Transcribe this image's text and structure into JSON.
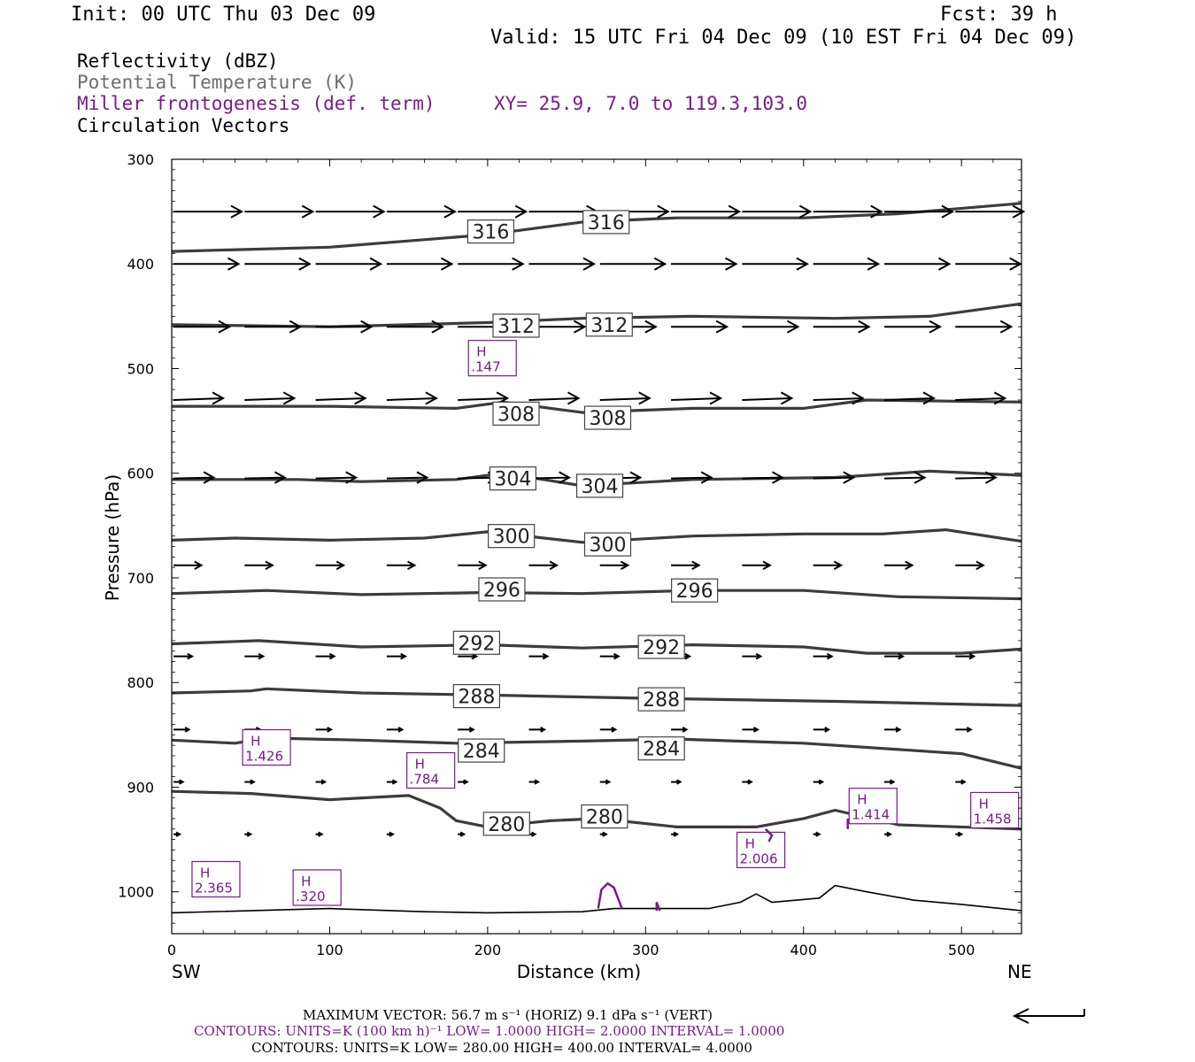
{
  "header": {
    "init": "Init: 00 UTC Thu 03 Dec 09",
    "fcst": "Fcst:   39 h",
    "valid": "Valid: 15 UTC Fri 04 Dec 09 (10 EST Fri 04 Dec 09)"
  },
  "legend": {
    "reflectivity": "Reflectivity (dBZ)",
    "theta": "Potential Temperature (K)",
    "frontogenesis": "Miller frontogenesis (def. term)",
    "xy": "XY=  25.9,  7.0 to 119.3,103.0",
    "vectors": "Circulation Vectors"
  },
  "footer": {
    "max_vector": "MAXIMUM VECTOR:  56.7 m s⁻¹ (HORIZ)          9.1 dPa s⁻¹ (VERT)",
    "contours_purple": "CONTOURS:  UNITS=K (100 km h)⁻¹  LOW=   1.0000       HIGH=   2.0000       INTERVAL=    1.0000",
    "contours_black": "CONTOURS:  UNITS=K  LOW=   280.00       HIGH=   400.00       INTERVAL=    4.0000"
  },
  "colors": {
    "theta": "#3c3c3c",
    "frontogenesis": "#7a1a8a",
    "vectors": "#000000"
  },
  "chart_data": {
    "type": "line",
    "xlabel": "Distance (km)",
    "ylabel": "Pressure (hPa)",
    "xlim": [
      0,
      538
    ],
    "ylim": [
      1040,
      300
    ],
    "y_scale": "linear, inverted (pressure)",
    "xticks": [
      0,
      100,
      200,
      300,
      400,
      500
    ],
    "yticks": [
      300,
      400,
      500,
      600,
      700,
      800,
      900,
      1000
    ],
    "x_end_labels": {
      "left": "SW",
      "right": "NE"
    },
    "grid": false,
    "theta_contours": [
      {
        "level": 316,
        "label": "316",
        "points": [
          [
            0,
            388
          ],
          [
            100,
            384
          ],
          [
            200,
            372
          ],
          [
            260,
            360
          ],
          [
            320,
            356
          ],
          [
            400,
            356
          ],
          [
            460,
            352
          ],
          [
            538,
            342
          ]
        ],
        "label_at": [
          [
            202,
            369
          ],
          [
            275,
            360
          ]
        ]
      },
      {
        "level": 312,
        "label": "312",
        "points": [
          [
            0,
            458
          ],
          [
            100,
            460
          ],
          [
            200,
            456
          ],
          [
            260,
            452
          ],
          [
            330,
            450
          ],
          [
            420,
            452
          ],
          [
            480,
            450
          ],
          [
            538,
            438
          ]
        ],
        "label_at": [
          [
            218,
            459
          ],
          [
            277,
            458
          ]
        ]
      },
      {
        "level": 308,
        "label": "308",
        "points": [
          [
            0,
            536
          ],
          [
            100,
            536
          ],
          [
            180,
            538
          ],
          [
            210,
            532
          ],
          [
            260,
            542
          ],
          [
            330,
            538
          ],
          [
            400,
            538
          ],
          [
            440,
            530
          ],
          [
            538,
            532
          ]
        ],
        "label_at": [
          [
            218,
            543
          ],
          [
            276,
            547
          ]
        ]
      },
      {
        "level": 304,
        "label": "304",
        "points": [
          [
            0,
            606
          ],
          [
            80,
            606
          ],
          [
            120,
            608
          ],
          [
            180,
            606
          ],
          [
            210,
            600
          ],
          [
            260,
            612
          ],
          [
            330,
            606
          ],
          [
            420,
            604
          ],
          [
            480,
            598
          ],
          [
            538,
            602
          ]
        ],
        "label_at": [
          [
            216,
            605
          ],
          [
            271,
            612
          ]
        ]
      },
      {
        "level": 300,
        "label": "300",
        "points": [
          [
            0,
            664
          ],
          [
            40,
            662
          ],
          [
            100,
            664
          ],
          [
            160,
            662
          ],
          [
            200,
            656
          ],
          [
            260,
            666
          ],
          [
            330,
            660
          ],
          [
            400,
            658
          ],
          [
            450,
            658
          ],
          [
            490,
            654
          ],
          [
            538,
            665
          ]
        ],
        "label_at": [
          [
            215,
            660
          ],
          [
            276,
            668
          ]
        ]
      },
      {
        "level": 296,
        "label": "296",
        "points": [
          [
            0,
            715
          ],
          [
            60,
            712
          ],
          [
            120,
            716
          ],
          [
            200,
            714
          ],
          [
            260,
            715
          ],
          [
            330,
            712
          ],
          [
            400,
            712
          ],
          [
            460,
            718
          ],
          [
            538,
            720
          ]
        ],
        "label_at": [
          [
            209,
            711
          ],
          [
            331,
            712
          ]
        ]
      },
      {
        "level": 292,
        "label": "292",
        "points": [
          [
            0,
            763
          ],
          [
            55,
            760
          ],
          [
            120,
            766
          ],
          [
            200,
            764
          ],
          [
            260,
            767
          ],
          [
            330,
            764
          ],
          [
            400,
            766
          ],
          [
            440,
            772
          ],
          [
            500,
            772
          ],
          [
            538,
            768
          ]
        ],
        "label_at": [
          [
            193,
            762
          ],
          [
            310,
            766
          ]
        ]
      },
      {
        "level": 288,
        "label": "288",
        "points": [
          [
            0,
            810
          ],
          [
            50,
            808
          ],
          [
            60,
            806
          ],
          [
            120,
            810
          ],
          [
            200,
            812
          ],
          [
            300,
            815
          ],
          [
            420,
            818
          ],
          [
            538,
            822
          ]
        ],
        "label_at": [
          [
            193,
            813
          ],
          [
            310,
            816
          ]
        ]
      },
      {
        "level": 284,
        "label": "284",
        "points": [
          [
            0,
            855
          ],
          [
            40,
            858
          ],
          [
            60,
            853
          ],
          [
            120,
            855
          ],
          [
            180,
            858
          ],
          [
            260,
            856
          ],
          [
            320,
            854
          ],
          [
            400,
            858
          ],
          [
            500,
            868
          ],
          [
            538,
            882
          ]
        ],
        "label_at": [
          [
            196,
            865
          ],
          [
            310,
            863
          ]
        ]
      },
      {
        "level": 280,
        "label": "280",
        "points": [
          [
            0,
            904
          ],
          [
            50,
            906
          ],
          [
            100,
            912
          ],
          [
            150,
            908
          ],
          [
            170,
            920
          ],
          [
            180,
            932
          ],
          [
            200,
            938
          ],
          [
            240,
            932
          ],
          [
            270,
            930
          ],
          [
            320,
            938
          ],
          [
            370,
            938
          ],
          [
            400,
            930
          ],
          [
            420,
            922
          ],
          [
            460,
            936
          ],
          [
            538,
            940
          ]
        ],
        "label_at": [
          [
            212,
            935
          ],
          [
            274,
            928
          ]
        ]
      }
    ],
    "terrain": [
      [
        0,
        1020
      ],
      [
        100,
        1016
      ],
      [
        160,
        1019
      ],
      [
        200,
        1020
      ],
      [
        260,
        1019
      ],
      [
        280,
        1016
      ],
      [
        340,
        1016
      ],
      [
        360,
        1010
      ],
      [
        370,
        1002
      ],
      [
        380,
        1010
      ],
      [
        410,
        1006
      ],
      [
        420,
        994
      ],
      [
        440,
        1000
      ],
      [
        470,
        1008
      ],
      [
        500,
        1012
      ],
      [
        538,
        1018
      ]
    ],
    "frontogenesis_maxima": [
      {
        "label": "H",
        "value": "1.426",
        "x": 60,
        "p": 862
      },
      {
        "label": "H",
        "value": ".784",
        "x": 164,
        "p": 884
      },
      {
        "label": "H",
        "value": ".147",
        "x": 203,
        "p": 490
      },
      {
        "label": "H",
        "value": "2.365",
        "x": 28,
        "p": 988
      },
      {
        "label": "H",
        "value": ".320",
        "x": 92,
        "p": 996
      },
      {
        "label": "H",
        "value": "2.006",
        "x": 373,
        "p": 960
      },
      {
        "label": "H",
        "value": "1.414",
        "x": 444,
        "p": 918
      },
      {
        "label": "H",
        "value": "1.458",
        "x": 521,
        "p": 922
      }
    ],
    "vector_rows": [
      {
        "p": 350,
        "x": [
          0,
          45,
          90,
          135,
          180,
          225,
          270,
          315,
          360,
          405,
          450,
          495
        ],
        "u": 44,
        "w": 0
      },
      {
        "p": 400,
        "x": [
          0,
          45,
          90,
          135,
          180,
          225,
          270,
          315,
          360,
          405,
          450,
          495
        ],
        "u": 42,
        "w": 0
      },
      {
        "p": 460,
        "x": [
          0,
          45,
          90,
          135,
          180,
          225,
          270,
          315,
          360,
          405,
          450,
          495
        ],
        "u": 36,
        "w": 0
      },
      {
        "p": 530,
        "x": [
          0,
          45,
          90,
          135,
          180,
          225,
          270,
          315,
          360,
          405,
          450,
          495
        ],
        "u": 32,
        "w": -2
      },
      {
        "p": 605,
        "x": [
          0,
          45,
          90,
          135,
          180,
          225,
          270,
          315,
          360,
          405,
          450,
          495
        ],
        "u": 26,
        "w": -1
      },
      {
        "p": 688,
        "x": [
          0,
          45,
          90,
          135,
          180,
          225,
          270,
          315,
          360,
          405,
          450,
          495
        ],
        "u": 18,
        "w": 0
      },
      {
        "p": 775,
        "x": [
          0,
          45,
          90,
          135,
          180,
          225,
          270,
          315,
          360,
          405,
          450,
          495
        ],
        "u": 12,
        "w": 0
      },
      {
        "p": 845,
        "x": [
          0,
          45,
          90,
          135,
          180,
          225,
          270,
          315,
          360,
          405,
          450,
          495
        ],
        "u": 10,
        "w": 0
      },
      {
        "p": 895,
        "x": [
          0,
          45,
          90,
          135,
          180,
          225,
          270,
          315,
          360,
          405,
          450,
          495
        ],
        "u": 6,
        "w": 0
      },
      {
        "p": 945,
        "x": [
          0,
          45,
          90,
          135,
          180,
          225,
          270,
          315,
          360,
          405,
          450,
          495
        ],
        "u": 4,
        "w": 0
      }
    ]
  }
}
